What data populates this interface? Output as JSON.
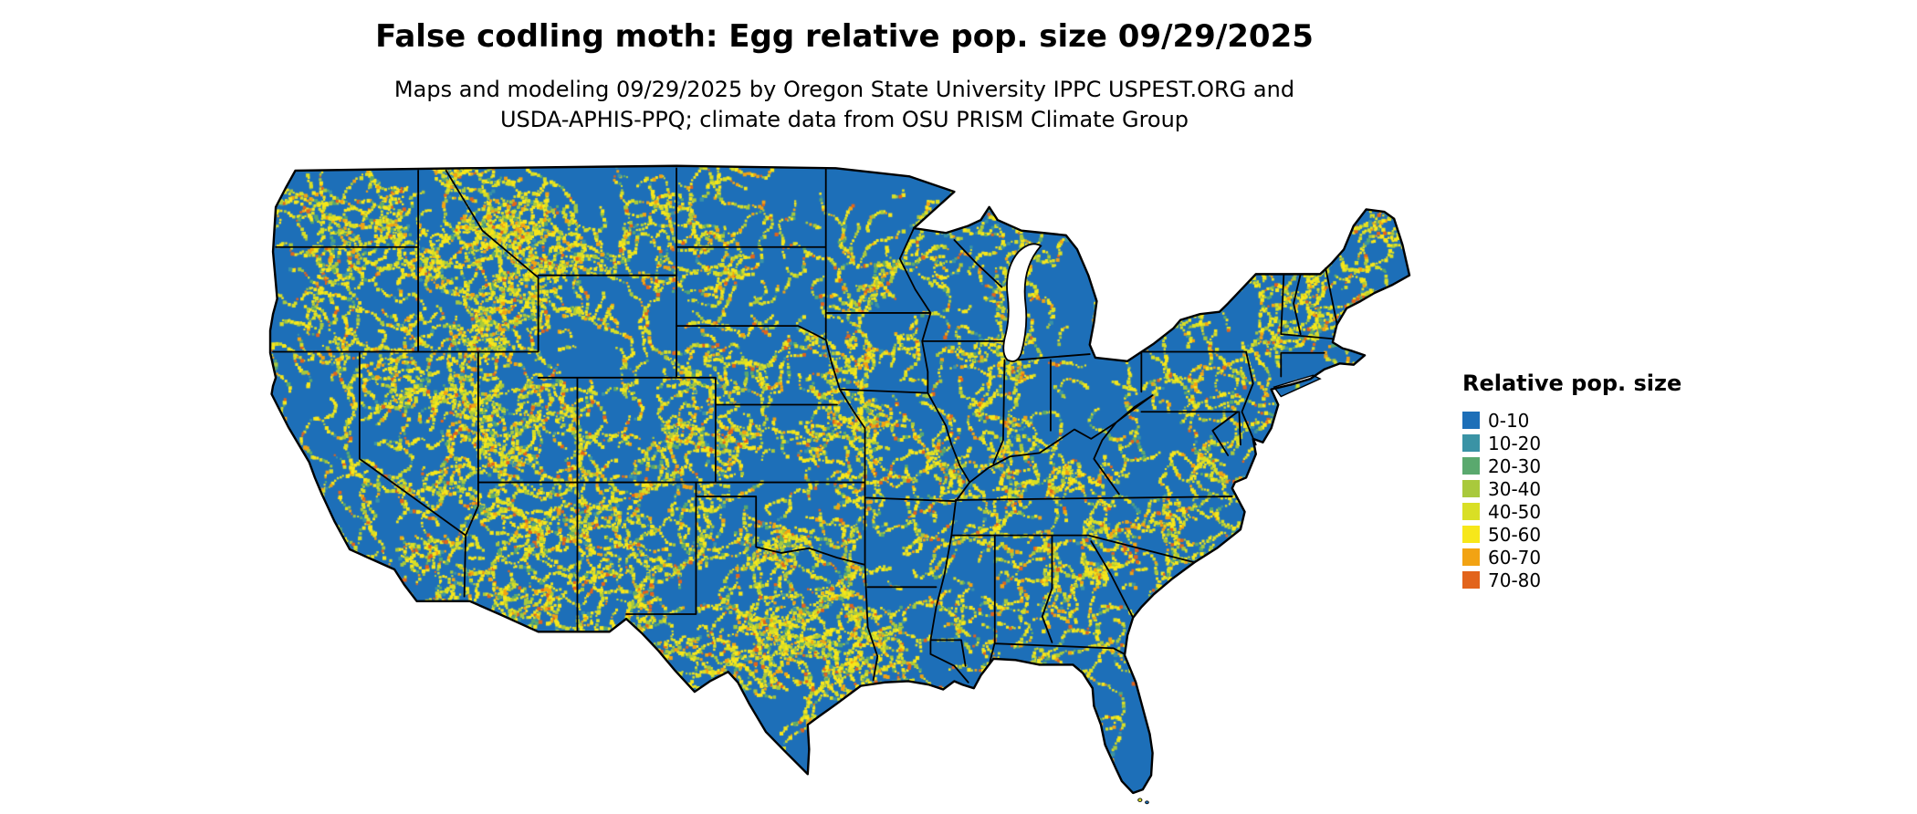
{
  "header": {
    "title": "False codling moth: Egg relative pop. size 09/29/2025",
    "subtitle_line1": "Maps and modeling 09/29/2025 by Oregon State University IPPC USPEST.ORG and",
    "subtitle_line2": "USDA-APHIS-PPQ; climate data from OSU PRISM Climate Group"
  },
  "legend": {
    "title": "Relative pop. size",
    "items": [
      {
        "label": "0-10",
        "color": "#1d6fb8"
      },
      {
        "label": "10-20",
        "color": "#3a93a5"
      },
      {
        "label": "20-30",
        "color": "#5aa96e"
      },
      {
        "label": "30-40",
        "color": "#a9c93c"
      },
      {
        "label": "40-50",
        "color": "#d9df25"
      },
      {
        "label": "50-60",
        "color": "#f7e71a"
      },
      {
        "label": "60-70",
        "color": "#f2a313"
      },
      {
        "label": "70-80",
        "color": "#e2641c"
      }
    ]
  },
  "map": {
    "water_color": "#ffffff",
    "border_color": "#000000"
  }
}
